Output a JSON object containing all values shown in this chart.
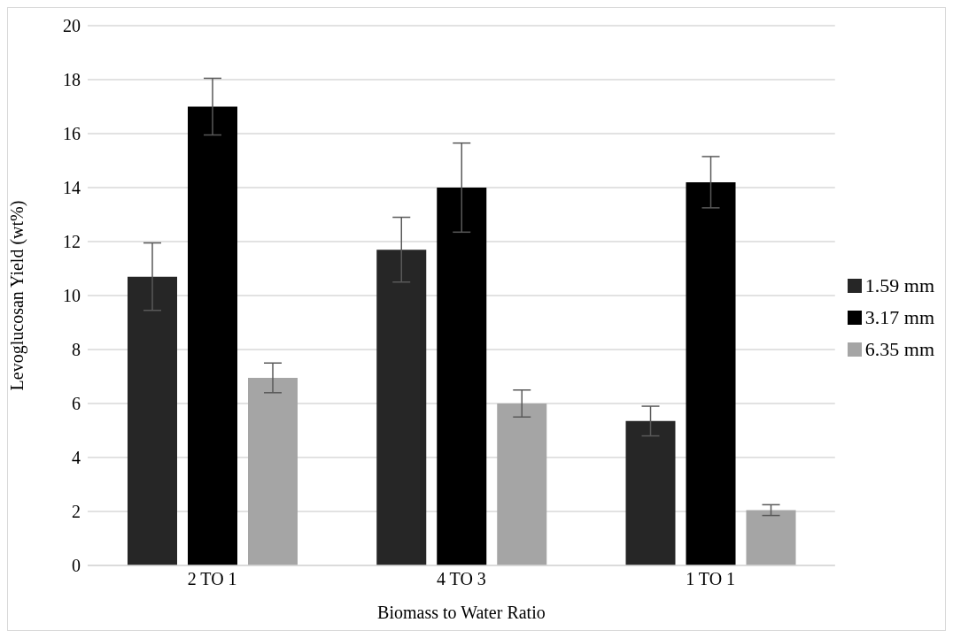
{
  "chart_data": {
    "type": "bar",
    "xlabel": "Biomass to Water Ratio",
    "ylabel": "Levoglucosan Yield (wt%)",
    "categories": [
      "2 TO 1",
      "4 TO 3",
      "1 TO 1"
    ],
    "series": [
      {
        "name": "1.59 mm",
        "color": "#262626",
        "values": [
          10.7,
          11.7,
          5.35
        ],
        "errors": [
          1.25,
          1.2,
          0.55
        ]
      },
      {
        "name": "3.17 mm",
        "color": "#000000",
        "values": [
          17.0,
          14.0,
          14.2
        ],
        "errors": [
          1.05,
          1.65,
          0.95
        ]
      },
      {
        "name": "6.35 mm",
        "color": "#a5a5a5",
        "values": [
          6.95,
          6.0,
          2.05
        ],
        "errors": [
          0.55,
          0.5,
          0.2
        ]
      }
    ],
    "ylim": [
      0,
      20
    ],
    "yticks": [
      0,
      2,
      4,
      6,
      8,
      10,
      12,
      14,
      16,
      18,
      20
    ],
    "grid": "y",
    "legend": "right"
  }
}
